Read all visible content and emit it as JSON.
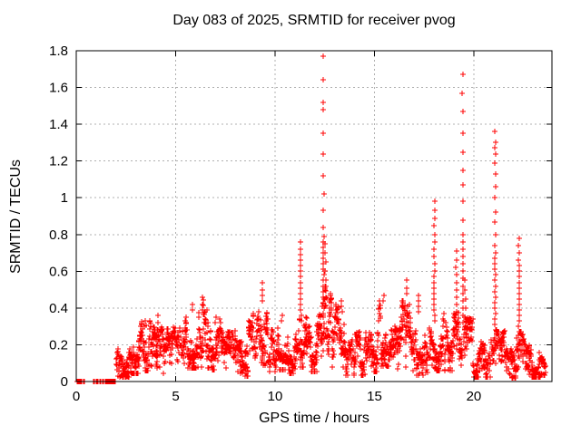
{
  "window": {
    "background": "#ffffff"
  },
  "chart_data": {
    "type": "scatter",
    "marker": "plus",
    "marker_color": "#ff0000",
    "grid": true,
    "grid_color": "#b0b0b0",
    "axis_color": "#000000",
    "title": "Day 083 of 2025, SRMTID for receiver pvog",
    "xlabel": "GPS time / hours",
    "ylabel": "SRMTID / TECUs",
    "xlim": [
      0,
      23.93
    ],
    "ylim": [
      0,
      1.8
    ],
    "xticks": [
      0,
      5,
      10,
      15,
      20
    ],
    "xticklabels": [
      "0",
      "5",
      "10",
      "15",
      "20"
    ],
    "yticks": [
      0,
      0.2,
      0.4,
      0.6,
      0.8,
      1.0,
      1.2,
      1.4,
      1.6,
      1.8
    ],
    "yticklabels": [
      "0",
      "0.2",
      "0.4",
      "0.6",
      "0.8",
      "1",
      "1.2",
      "1.4",
      "1.6",
      "1.8"
    ],
    "seed": 83,
    "zero_runs": [
      [
        0.03,
        0.4,
        8
      ],
      [
        0.85,
        1.45,
        10
      ],
      [
        1.5,
        1.8,
        8
      ],
      [
        1.8,
        1.96,
        16
      ]
    ],
    "spike_columns": [
      [
        3.45,
        [
          0.33,
          0.3
        ]
      ],
      [
        4.1,
        [
          0.36,
          0.32,
          0.28,
          0.24
        ]
      ],
      [
        5.85,
        [
          0.42,
          0.39
        ]
      ],
      [
        6.33,
        [
          0.46,
          0.42,
          0.39
        ]
      ],
      [
        7.0,
        [
          0.35,
          0.32
        ]
      ],
      [
        9.37,
        [
          0.54,
          0.5,
          0.47,
          0.44
        ]
      ],
      [
        10.35,
        [
          0.36,
          0.33
        ]
      ],
      [
        11.28,
        [
          0.76,
          0.72,
          0.69,
          0.66,
          0.63,
          0.6,
          0.57,
          0.54,
          0.51,
          0.48,
          0.45,
          0.42,
          0.39,
          0.36,
          0.33
        ]
      ],
      [
        12.43,
        [
          1.77,
          1.64,
          1.52,
          1.48,
          1.35,
          1.24,
          1.12,
          1.02,
          0.93,
          0.84,
          0.79,
          0.76,
          0.73,
          0.7,
          0.67,
          0.64,
          0.61,
          0.58,
          0.55,
          0.52,
          0.49,
          0.46,
          0.43,
          0.4,
          0.37
        ]
      ],
      [
        12.52,
        [
          0.75,
          0.7,
          0.65,
          0.6,
          0.55,
          0.5,
          0.45
        ]
      ],
      [
        13.35,
        [
          0.44,
          0.41,
          0.38
        ]
      ],
      [
        15.45,
        [
          0.47,
          0.44
        ]
      ],
      [
        16.62,
        [
          0.55,
          0.51,
          0.48
        ]
      ],
      [
        17.2,
        [
          0.47,
          0.44,
          0.41,
          0.38
        ]
      ],
      [
        18.02,
        [
          0.98,
          0.93,
          0.89,
          0.85,
          0.8,
          0.76,
          0.72,
          0.68,
          0.64,
          0.6,
          0.57,
          0.54,
          0.51,
          0.48,
          0.45,
          0.42,
          0.39,
          0.36,
          0.33
        ]
      ],
      [
        19.12,
        [
          0.71,
          0.66,
          0.62,
          0.58,
          0.54,
          0.5,
          0.46,
          0.42,
          0.38
        ]
      ],
      [
        19.45,
        [
          1.67,
          1.57,
          1.47,
          1.35,
          1.25,
          1.15,
          1.07,
          0.98,
          0.88,
          0.8,
          0.76,
          0.72,
          0.68,
          0.64,
          0.6,
          0.56,
          0.52,
          0.48,
          0.44,
          0.4,
          0.36,
          0.32
        ]
      ],
      [
        19.56,
        [
          0.55,
          0.5,
          0.45,
          0.4,
          0.35,
          0.3
        ]
      ],
      [
        21.08,
        [
          1.36,
          1.3,
          1.27,
          1.24,
          1.19,
          1.13,
          1.06,
          1.0,
          0.92,
          0.87,
          0.8,
          0.74,
          0.7,
          0.67,
          0.64,
          0.61,
          0.58,
          0.55,
          0.52,
          0.49,
          0.46,
          0.43,
          0.4,
          0.37,
          0.34,
          0.31,
          0.28
        ]
      ],
      [
        22.28,
        [
          0.78,
          0.74,
          0.7,
          0.66,
          0.63,
          0.6,
          0.57,
          0.54,
          0.51,
          0.48,
          0.45,
          0.42,
          0.39,
          0.36,
          0.33,
          0.3,
          0.27
        ]
      ]
    ],
    "baseline_segments": [
      [
        2.0,
        2.65,
        0.04,
        0.2,
        40
      ],
      [
        2.65,
        3.15,
        0.07,
        0.26,
        32
      ],
      [
        3.15,
        3.75,
        0.1,
        0.33,
        38
      ],
      [
        3.75,
        4.45,
        0.07,
        0.3,
        42
      ],
      [
        4.45,
        5.35,
        0.1,
        0.3,
        52
      ],
      [
        5.35,
        6.15,
        0.12,
        0.42,
        48
      ],
      [
        6.15,
        6.75,
        0.12,
        0.46,
        36
      ],
      [
        6.75,
        7.45,
        0.11,
        0.35,
        42
      ],
      [
        7.45,
        8.15,
        0.07,
        0.28,
        42
      ],
      [
        8.15,
        8.65,
        0.05,
        0.22,
        30
      ],
      [
        8.65,
        9.35,
        0.12,
        0.38,
        42
      ],
      [
        9.35,
        9.65,
        0.15,
        0.42,
        20
      ],
      [
        9.65,
        10.15,
        0.09,
        0.3,
        30
      ],
      [
        10.15,
        10.75,
        0.11,
        0.36,
        36
      ],
      [
        10.75,
        11.2,
        0.07,
        0.26,
        28
      ],
      [
        11.2,
        11.6,
        0.13,
        0.42,
        26
      ],
      [
        11.6,
        12.2,
        0.09,
        0.32,
        38
      ],
      [
        12.2,
        12.85,
        0.22,
        0.52,
        46
      ],
      [
        12.85,
        13.55,
        0.13,
        0.42,
        42
      ],
      [
        13.55,
        14.75,
        0.06,
        0.28,
        72
      ],
      [
        14.75,
        15.15,
        0.09,
        0.26,
        24
      ],
      [
        15.15,
        15.85,
        0.14,
        0.44,
        44
      ],
      [
        15.85,
        16.35,
        0.1,
        0.3,
        30
      ],
      [
        16.35,
        16.95,
        0.13,
        0.44,
        38
      ],
      [
        16.95,
        17.55,
        0.06,
        0.28,
        36
      ],
      [
        17.55,
        17.95,
        0.08,
        0.3,
        24
      ],
      [
        17.95,
        18.45,
        0.1,
        0.35,
        30
      ],
      [
        18.45,
        19.05,
        0.1,
        0.38,
        38
      ],
      [
        19.05,
        19.42,
        0.12,
        0.38,
        22
      ],
      [
        19.5,
        19.95,
        0.1,
        0.35,
        28
      ],
      [
        19.95,
        20.85,
        0.04,
        0.22,
        54
      ],
      [
        20.85,
        21.06,
        0.1,
        0.25,
        12
      ],
      [
        21.1,
        21.55,
        0.08,
        0.28,
        28
      ],
      [
        21.55,
        22.15,
        0.03,
        0.18,
        36
      ],
      [
        22.15,
        22.6,
        0.08,
        0.28,
        26
      ],
      [
        22.6,
        23.35,
        0.04,
        0.2,
        44
      ],
      [
        23.35,
        23.6,
        0.06,
        0.16,
        14
      ]
    ]
  }
}
